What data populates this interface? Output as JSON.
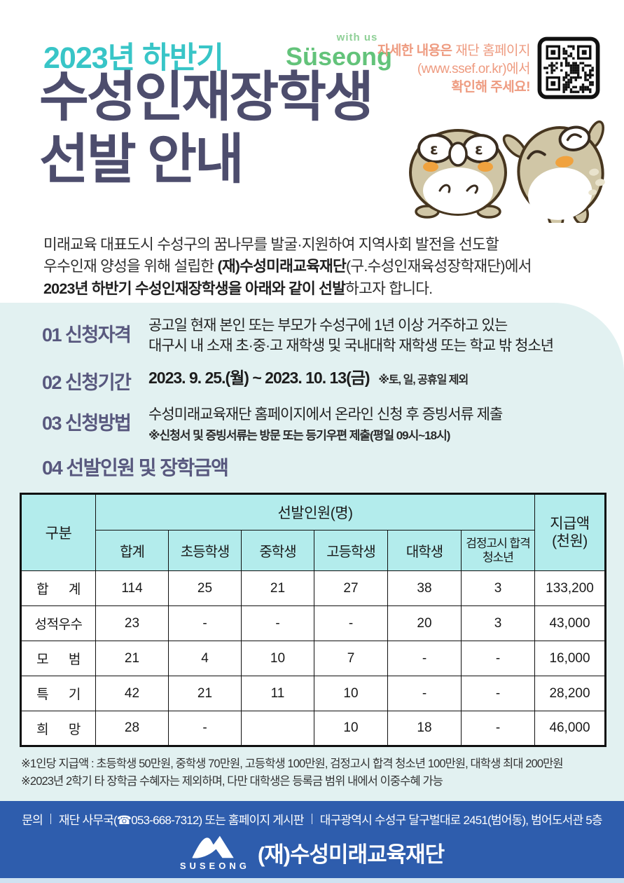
{
  "header": {
    "season": "2023년 하반기",
    "title_line1": "수성인재장학생",
    "title_line2": "선발 안내",
    "logo": {
      "tagline": "with us",
      "name": "Süseong"
    },
    "notice": {
      "line1_strong": "자세한 내용은",
      "line1_rest": " 재단 홈페이지",
      "line2": "(www.ssef.or.kr)에서",
      "line3": "확인해 주세요!"
    }
  },
  "intro": {
    "line1": "미래교육 대표도시 수성구의 꿈나무를 발굴·지원하여 지역사회 발전을 선도할",
    "line2_pre": "우수인재 양성을 위해 설립한 ",
    "line2_strong": "(재)수성미래교육재단",
    "line2_post": "(구.수성인재육성장학재단)에서",
    "line3_strong": "2023년 하반기 수성인재장학생을 아래와 같이 선발",
    "line3_post": "하고자 합니다."
  },
  "sections": {
    "s1": {
      "num_label": "01 신청자격",
      "line1": "공고일 현재 본인 또는 부모가 수성구에 1년 이상 거주하고 있는",
      "line2": "대구시 내 소재 초·중·고 재학생 및 국내대학 재학생 또는 학교 밖 청소년"
    },
    "s2": {
      "num_label": "02 신청기간",
      "period": "2023. 9. 25.(월) ~ 2023. 10. 13(금)",
      "note": "※토, 일, 공휴일 제외"
    },
    "s3": {
      "num_label": "03 신청방법",
      "line1": "수성미래교육재단 홈페이지에서 온라인 신청 후 증빙서류 제출",
      "note": "※신청서 및 증빙서류는 방문 또는 등기우편 제출(평일 09시~18시)"
    },
    "s4": {
      "num_label": "04 선발인원 및 장학금액"
    }
  },
  "table": {
    "corner_header": "구분",
    "group_header": "선발인원(명)",
    "amount_header_line1": "지급액",
    "amount_header_line2": "(천원)",
    "sub_headers": [
      "합계",
      "초등학생",
      "중학생",
      "고등학생",
      "대학생",
      "검정고시 합격 청소년"
    ],
    "rows": [
      {
        "label": "합      계",
        "values": [
          "114",
          "25",
          "21",
          "27",
          "38",
          "3"
        ],
        "amount": "133,200"
      },
      {
        "label": "성적우수",
        "values": [
          "23",
          "-",
          "-",
          "-",
          "20",
          "3"
        ],
        "amount": "43,000"
      },
      {
        "label": "모      범",
        "values": [
          "21",
          "4",
          "10",
          "7",
          "-",
          "-"
        ],
        "amount": "16,000"
      },
      {
        "label": "특      기",
        "values": [
          "42",
          "21",
          "11",
          "10",
          "-",
          "-"
        ],
        "amount": "28,200"
      },
      {
        "label": "희      망",
        "values": [
          "28",
          "-",
          "",
          "10",
          "18",
          "-"
        ],
        "amount": "46,000"
      }
    ]
  },
  "chart_data": {
    "type": "table",
    "title": "04 선발인원 및 장학금액",
    "columns": [
      "구분",
      "합계",
      "초등학생",
      "중학생",
      "고등학생",
      "대학생",
      "검정고시 합격 청소년",
      "지급액(천원)"
    ],
    "rows": [
      [
        "합계",
        114,
        25,
        21,
        27,
        38,
        3,
        133200
      ],
      [
        "성적우수",
        23,
        null,
        null,
        null,
        20,
        3,
        43000
      ],
      [
        "모범",
        21,
        4,
        10,
        7,
        null,
        null,
        16000
      ],
      [
        "특기",
        42,
        21,
        11,
        10,
        null,
        null,
        28200
      ],
      [
        "희망",
        28,
        null,
        null,
        10,
        18,
        null,
        46000
      ]
    ]
  },
  "footnotes": [
    "※1인당 지급액 : 초등학생 50만원, 중학생 70만원, 고등학생 100만원, 검정고시 합격 청소년 100만원, 대학생 최대 200만원",
    "※2023년 2학기 타 장학금 수혜자는 제외하며, 다만 대학생은 등록금 범위 내에서 이중수혜 가능"
  ],
  "footer": {
    "contact_parts": [
      "문의",
      "재단 사무국(☎053-668-7312) 또는 홈페이지 게시판",
      "대구광역시 수성구 달구벌대로 2451(범어동), 범어도서관 5층"
    ],
    "logo_text": "SUSEONG",
    "org_name": "(재)수성미래교육재단"
  },
  "colors": {
    "teal_accent": "#38c5c7",
    "title_navy": "#4d4d6d",
    "section_heading": "#58587e",
    "notice_salmon": "#ee9b80",
    "logo_green": "#63c37a",
    "section_bg": "#e2f1f1",
    "table_header_bg": "#b3ecec",
    "footer_bg": "#2e5dad"
  }
}
